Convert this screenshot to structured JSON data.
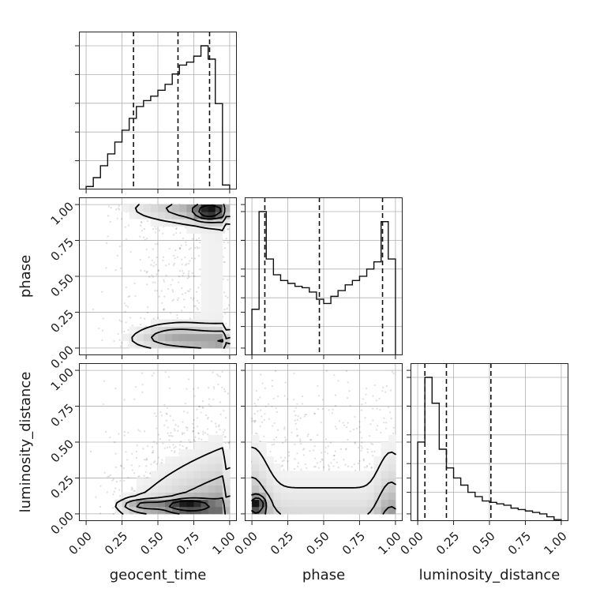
{
  "chart_data": {
    "type": "corner",
    "parameters": [
      "geocent_time",
      "phase",
      "luminosity_distance"
    ],
    "axis_labels": {
      "x": [
        "geocent_time",
        "phase",
        "luminosity_distance"
      ],
      "y": [
        "phase",
        "luminosity_distance"
      ]
    },
    "tick_labels": [
      "0.00",
      "0.25",
      "0.50",
      "0.75",
      "1.00"
    ],
    "tick_values": [
      0,
      0.25,
      0.5,
      0.75,
      1.0
    ],
    "range": [
      -0.05,
      1.05
    ],
    "grid": true,
    "histograms": [
      {
        "parameter": "geocent_time",
        "bins": 20,
        "heights": [
          0.02,
          0.08,
          0.16,
          0.24,
          0.32,
          0.4,
          0.48,
          0.56,
          0.6,
          0.63,
          0.67,
          0.71,
          0.78,
          0.84,
          0.86,
          0.9,
          0.97,
          0.88,
          0.58,
          0.03
        ],
        "quantiles": [
          0.33,
          0.64,
          0.86
        ]
      },
      {
        "parameter": "phase",
        "bins": 20,
        "heights": [
          0.32,
          1.0,
          0.67,
          0.56,
          0.52,
          0.5,
          0.48,
          0.47,
          0.44,
          0.39,
          0.36,
          0.41,
          0.45,
          0.49,
          0.52,
          0.55,
          0.6,
          0.65,
          0.93,
          0.67
        ],
        "quantiles": [
          0.09,
          0.47,
          0.91
        ]
      },
      {
        "parameter": "luminosity_distance",
        "bins": 20,
        "heights": [
          0.55,
          1.0,
          0.82,
          0.5,
          0.37,
          0.3,
          0.25,
          0.2,
          0.17,
          0.14,
          0.13,
          0.12,
          0.11,
          0.09,
          0.08,
          0.07,
          0.06,
          0.05,
          0.03,
          0.01
        ],
        "quantiles": [
          0.05,
          0.2,
          0.51
        ]
      }
    ]
  }
}
